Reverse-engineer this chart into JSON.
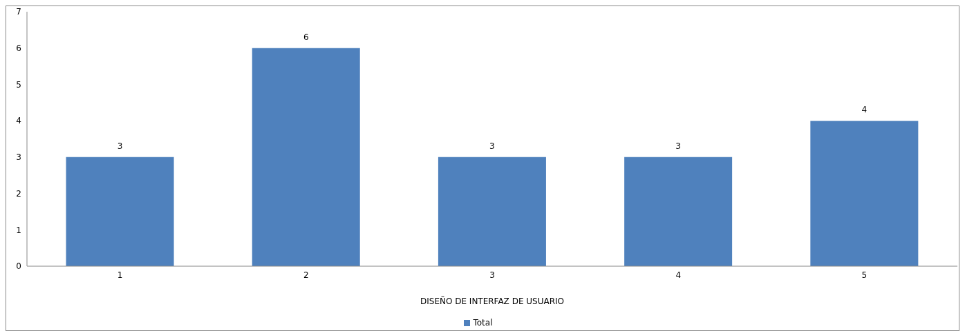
{
  "chart_data": {
    "type": "bar",
    "xlabel": "DISEÑO DE INTERFAZ DE USUARIO",
    "categories": [
      "1",
      "2",
      "3",
      "4",
      "5"
    ],
    "series": [
      {
        "name": "Total",
        "color": "#4f81bd",
        "values": [
          3,
          6,
          3,
          3,
          4
        ]
      }
    ],
    "ylim": [
      0,
      7
    ],
    "yticks": [
      0,
      1,
      2,
      3,
      4,
      5,
      6,
      7
    ],
    "grid": false,
    "legend": "bottom",
    "data_labels": true
  }
}
